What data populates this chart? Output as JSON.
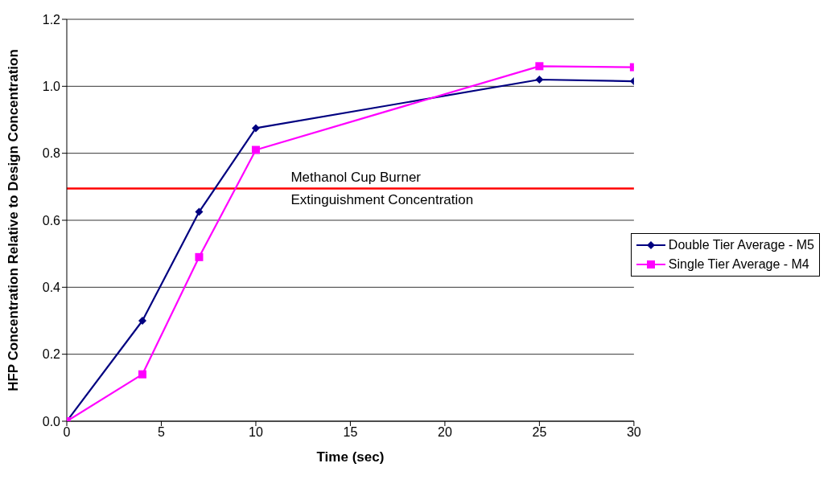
{
  "chart_data": {
    "type": "line",
    "xlabel": "Time (sec)",
    "ylabel": "HFP Concentration Relative to Design Concentration",
    "x": [
      0,
      4,
      7,
      10,
      25,
      30
    ],
    "series": [
      {
        "name": "Double Tier Average - M5",
        "color": "#000080",
        "marker": "diamond",
        "values": [
          0,
          0.3,
          0.625,
          0.875,
          1.02,
          1.015
        ]
      },
      {
        "name": "Single Tier Average - M4",
        "color": "#ff00ff",
        "marker": "square",
        "values": [
          0,
          0.14,
          0.49,
          0.81,
          1.06,
          1.057
        ]
      }
    ],
    "xlim": [
      0,
      30
    ],
    "xticks": [
      0,
      5,
      10,
      15,
      20,
      25,
      30
    ],
    "ylim": [
      0,
      1.2
    ],
    "yticks": [
      {
        "value": 0,
        "label": "0.0"
      },
      {
        "value": 0.2,
        "label": "0.2"
      },
      {
        "value": 0.4,
        "label": "0.4"
      },
      {
        "value": 0.6,
        "label": "0.6"
      },
      {
        "value": 0.8,
        "label": "0.8"
      },
      {
        "value": 1.0,
        "label": "1.0"
      },
      {
        "value": 1.2,
        "label": "1.2"
      }
    ],
    "ref_lines": [
      {
        "axis": "y",
        "value": 0.695,
        "label": "Methanol Cup Burner Extinguishment Concentration",
        "color": "#ff0000"
      }
    ],
    "grid": "y",
    "legend": "right",
    "line_style": "solid"
  }
}
